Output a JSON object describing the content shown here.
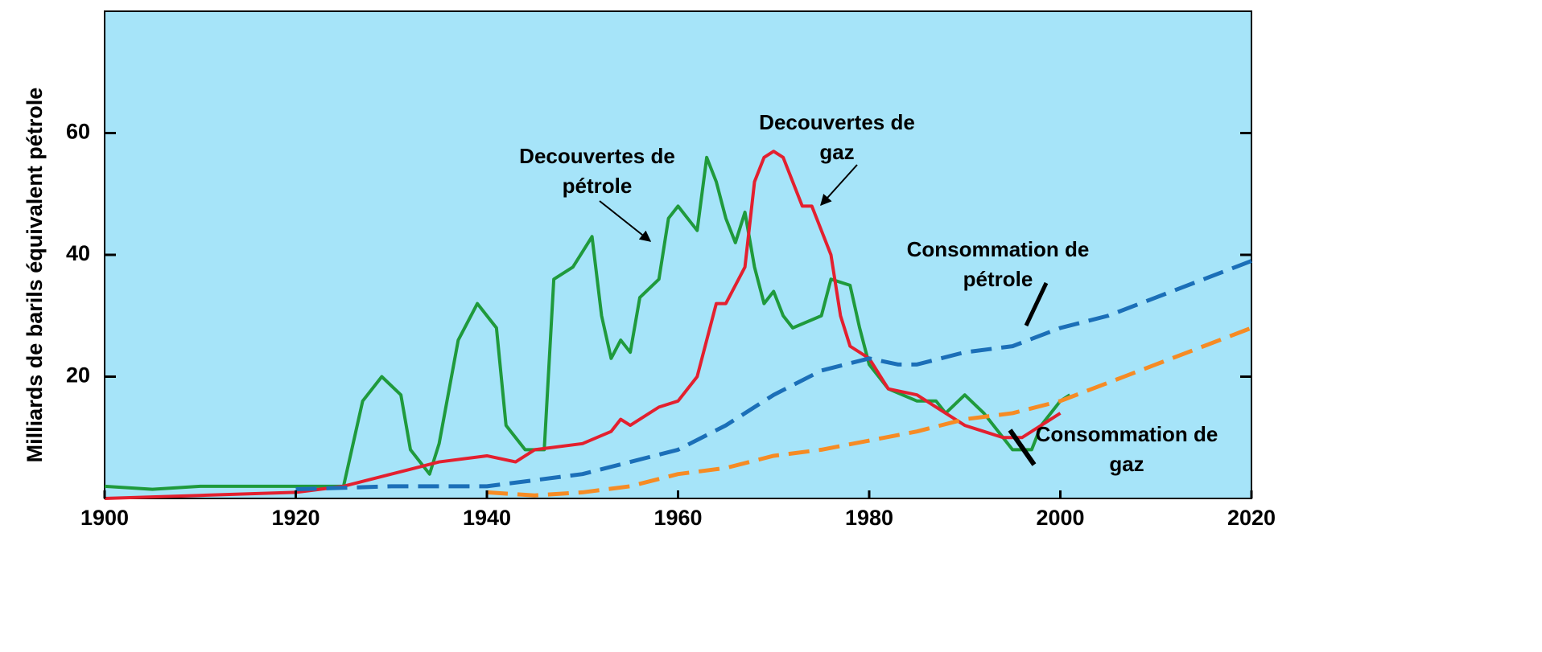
{
  "chart_data": {
    "type": "line",
    "y_label": "Milliards de barils équivalent pétrole",
    "xlim": [
      1900,
      2020
    ],
    "ylim": [
      0,
      80
    ],
    "xticks": [
      1900,
      1920,
      1940,
      1960,
      1980,
      2000,
      2020
    ],
    "yticks": [
      20,
      40,
      60
    ],
    "background": "#a6e4f9",
    "series": [
      {
        "name": "Decouvertes de pétrole",
        "color": "#1f9a3c",
        "style": "solid",
        "x": [
          1900,
          1905,
          1910,
          1915,
          1920,
          1925,
          1927,
          1929,
          1931,
          1932,
          1934,
          1935,
          1937,
          1939,
          1941,
          1942,
          1944,
          1946,
          1947,
          1949,
          1951,
          1952,
          1953,
          1954,
          1955,
          1956,
          1958,
          1959,
          1960,
          1961,
          1962,
          1963,
          1964,
          1965,
          1966,
          1967,
          1968,
          1969,
          1970,
          1971,
          1972,
          1975,
          1976,
          1978,
          1979,
          1980,
          1982,
          1985,
          1987,
          1988,
          1990,
          1992,
          1994,
          1995,
          1997,
          1998,
          2000,
          2001
        ],
        "values": [
          2,
          1.5,
          2,
          2,
          2,
          2,
          16,
          20,
          17,
          8,
          4,
          9,
          26,
          32,
          28,
          12,
          8,
          8,
          36,
          38,
          43,
          30,
          23,
          26,
          24,
          33,
          36,
          46,
          48,
          46,
          44,
          56,
          52,
          46,
          42,
          47,
          38,
          32,
          34,
          30,
          28,
          30,
          36,
          35,
          28,
          22,
          18,
          16,
          16,
          14,
          17,
          14,
          10,
          8,
          8,
          12,
          16,
          17
        ]
      },
      {
        "name": "Decouvertes de gaz",
        "color": "#e3202f",
        "style": "solid",
        "x": [
          1900,
          1910,
          1920,
          1925,
          1930,
          1935,
          1940,
          1943,
          1945,
          1950,
          1953,
          1954,
          1955,
          1958,
          1960,
          1962,
          1963,
          1964,
          1965,
          1966,
          1967,
          1968,
          1969,
          1970,
          1971,
          1972,
          1973,
          1974,
          1975,
          1976,
          1977,
          1978,
          1980,
          1982,
          1985,
          1988,
          1990,
          1992,
          1994,
          1996,
          1998,
          2000
        ],
        "values": [
          0,
          0.5,
          1,
          2,
          4,
          6,
          7,
          6,
          8,
          9,
          11,
          13,
          12,
          15,
          16,
          20,
          26,
          32,
          32,
          35,
          38,
          52,
          56,
          57,
          56,
          52,
          48,
          48,
          44,
          40,
          30,
          25,
          23,
          18,
          17,
          14,
          12,
          11,
          10,
          10,
          12,
          14
        ]
      },
      {
        "name": "Consommation de pétrole",
        "color": "#1b6fb8",
        "style": "dashed",
        "x": [
          1920,
          1930,
          1940,
          1945,
          1950,
          1955,
          1960,
          1965,
          1970,
          1975,
          1980,
          1983,
          1985,
          1990,
          1995,
          2000,
          2005,
          2010,
          2015,
          2020
        ],
        "values": [
          1.5,
          2,
          2,
          3,
          4,
          6,
          8,
          12,
          17,
          21,
          23,
          22,
          22,
          24,
          25,
          28,
          30,
          33,
          36,
          39
        ]
      },
      {
        "name": "Consommation de gaz",
        "color": "#f68b24",
        "style": "dashed",
        "x": [
          1940,
          1945,
          1950,
          1955,
          1960,
          1965,
          1970,
          1975,
          1980,
          1985,
          1990,
          1995,
          2000,
          2005,
          2010,
          2015,
          2020
        ],
        "values": [
          1,
          0.5,
          1,
          2,
          4,
          5,
          7,
          8,
          9.5,
          11,
          13,
          14,
          16,
          19,
          22,
          25,
          28
        ]
      }
    ]
  }
}
